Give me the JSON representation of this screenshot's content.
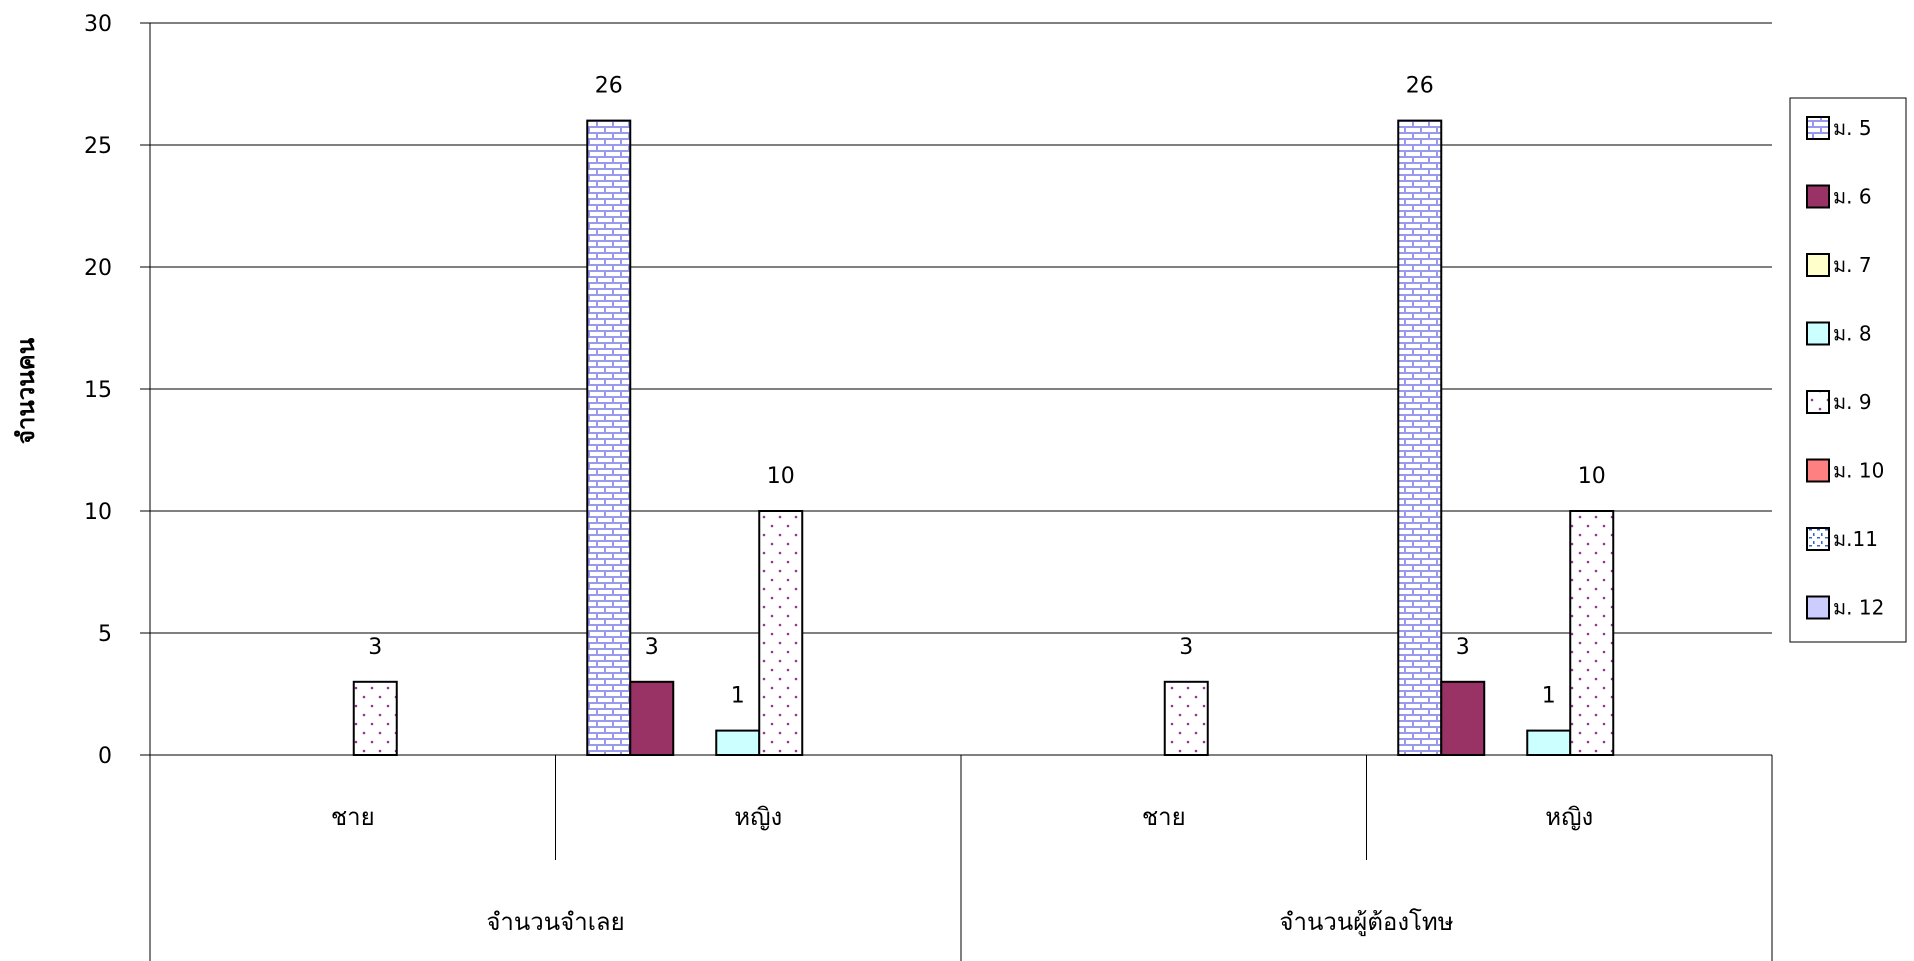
{
  "chart_data": {
    "type": "bar",
    "title": "",
    "ylabel": "จำนวนคน",
    "xlabel": "",
    "ylim": [
      0,
      30
    ],
    "yticks": [
      0,
      5,
      10,
      15,
      20,
      25,
      30
    ],
    "grid": true,
    "legend_position": "right",
    "groups": [
      {
        "label": "จำนวนจำเลย",
        "categories": [
          "ชาย",
          "หญิง"
        ]
      },
      {
        "label": "จำนวนผู้ต้องโทษ",
        "categories": [
          "ชาย",
          "หญิง"
        ]
      }
    ],
    "categories": [
      "ชาย",
      "หญิง",
      "ชาย",
      "หญิง"
    ],
    "series": [
      {
        "name": "ม. 5",
        "color": "#ccccff",
        "pattern": "brick",
        "values": [
          0,
          26,
          0,
          26
        ]
      },
      {
        "name": "ม. 6",
        "color": "#993366",
        "pattern": "solid",
        "values": [
          0,
          3,
          0,
          3
        ]
      },
      {
        "name": "ม. 7",
        "color": "#ffffcc",
        "pattern": "solid",
        "values": [
          0,
          0,
          0,
          0
        ]
      },
      {
        "name": "ม. 8",
        "color": "#ccffff",
        "pattern": "solid",
        "values": [
          0,
          1,
          0,
          1
        ]
      },
      {
        "name": "ม. 9",
        "color": "#ffffff",
        "pattern": "dots",
        "values": [
          3,
          10,
          3,
          10
        ]
      },
      {
        "name": " ม. 10",
        "color": "#ff8080",
        "pattern": "solid",
        "values": [
          0,
          0,
          0,
          0
        ]
      },
      {
        "name": "ม.11",
        "color": "#ccffff",
        "pattern": "dash",
        "values": [
          0,
          0,
          0,
          0
        ]
      },
      {
        "name": "ม. 12",
        "color": "#ccccff",
        "pattern": "solid",
        "values": [
          0,
          0,
          0,
          0
        ]
      }
    ]
  }
}
